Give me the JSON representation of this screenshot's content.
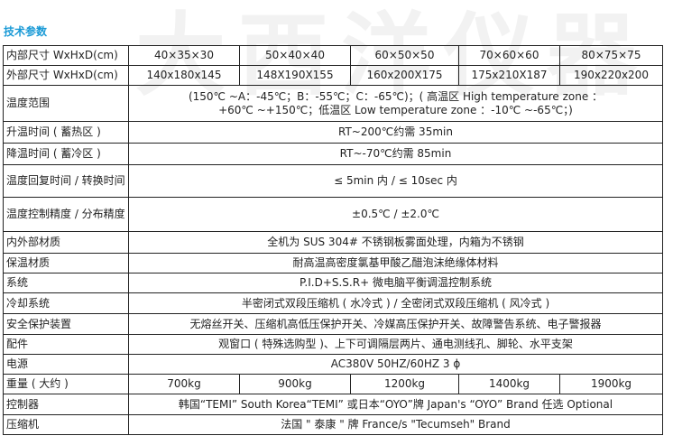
{
  "watermark": "大西洋仪器",
  "title": "技术参数",
  "rows": [
    {
      "label": "内部尺寸 WxHxD(cm)",
      "values": [
        "40×35×30",
        "50×40×40",
        "60×50×50",
        "70×60×60",
        "80×75×75"
      ]
    },
    {
      "label": "外部尺寸 WxHxD(cm)",
      "values": [
        "140x180x145",
        "148X190X155",
        "160x200X175",
        "175x210X187",
        "190x220x200"
      ]
    },
    {
      "label": "温度范围",
      "value": "(150℃ ~A：-45℃；B：-55℃；C：-65℃)；( 高温区 High temperature zone ：",
      "value2": "+60℃ ~+150℃；低温区 Low temperature zone ：-10℃ ~-65℃；)"
    },
    {
      "label": "升温时间 ( 蓄热区 )",
      "value": "RT~200℃约需 35min"
    },
    {
      "label": "降温时间 ( 蓄冷区 )",
      "value": "RT~-70℃约需 85min"
    },
    {
      "label": "温度回复时间 / 转换时间",
      "value": "≤ 5min 内  /  ≤ 10sec 内"
    },
    {
      "label": "温度控制精度 / 分布精度",
      "value": "±0.5℃  /  ±2.0℃"
    },
    {
      "label": "内外部材质",
      "value": "全机为 SUS 304# 不锈钢板雾面处理，内箱为不锈钢"
    },
    {
      "label": "保温材质",
      "value": "耐高温高密度氯基甲酸乙醋泡沫绝缘体材料"
    },
    {
      "label": "系统",
      "value": "P.I.D+S.S.R+ 微电脑平衡调温控制系统"
    },
    {
      "label": "冷却系统",
      "value": "半密闭式双段压缩机 ( 水冷式 ) / 全密闭式双段压缩机 ( 风冷式 )"
    },
    {
      "label": "安全保护装置",
      "value": "无熔丝开关、压缩机高低压保护开关、冷媒高压保护开关、故障警告系统、电子警报器"
    },
    {
      "label": "配件",
      "value": "观窗口 ( 特殊选购型 )、上下可调隔层两片、通电测线孔、脚轮、水平支架"
    },
    {
      "label": "电源",
      "value": "AC380V 50HZ/60HZ 3 ϕ"
    },
    {
      "label": "重量 ( 大约 )",
      "values": [
        "700kg",
        "900kg",
        "1200kg",
        "1400kg",
        "1900kg"
      ]
    },
    {
      "label": "控制器",
      "value": "韩国“TEMI” South Korea“TEMI” 或日本“OYO”牌 Japan's “OYO” Brand    任选 Optional"
    },
    {
      "label": "压缩机",
      "value": "法国 \" 泰康 \" 牌 France/s \"Tecumseh\" Brand"
    }
  ]
}
